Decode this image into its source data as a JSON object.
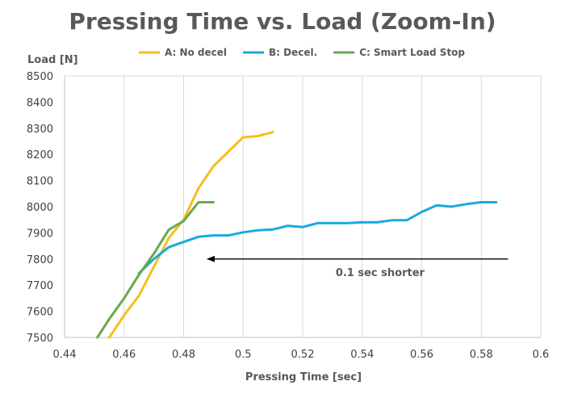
{
  "chart_data": {
    "type": "line",
    "title": "Pressing Time vs. Load (Zoom-In)",
    "xlabel": "Pressing Time [sec]",
    "ylabel": "Load [N]",
    "xlim": [
      0.44,
      0.6
    ],
    "ylim": [
      7500,
      8500
    ],
    "xticks": [
      0.44,
      0.46,
      0.48,
      0.5,
      0.52,
      0.54,
      0.56,
      0.58,
      0.6
    ],
    "xtick_labels": [
      "0.44",
      "0.46",
      "0.48",
      "0.5",
      "0.52",
      "0.54",
      "0.56",
      "0.58",
      "0.6"
    ],
    "yticks": [
      7500,
      7600,
      7700,
      7800,
      7900,
      8000,
      8100,
      8200,
      8300,
      8400,
      8500
    ],
    "ytick_labels": [
      "7500",
      "7600",
      "7700",
      "7800",
      "7900",
      "8000",
      "8100",
      "8200",
      "8300",
      "8400",
      "8500"
    ],
    "grid": "vertical",
    "legend_position": "top",
    "series": [
      {
        "name": "A: No decel",
        "color": "#f5bf1d",
        "x": [
          0.455,
          0.46,
          0.465,
          0.47,
          0.475,
          0.48,
          0.485,
          0.49,
          0.495,
          0.5,
          0.505,
          0.51
        ],
        "y": [
          7500,
          7585,
          7660,
          7770,
          7880,
          7950,
          8070,
          8155,
          8210,
          8265,
          8270,
          8285
        ]
      },
      {
        "name": "B: Decel.",
        "color": "#1aa9df",
        "x": [
          0.465,
          0.47,
          0.475,
          0.48,
          0.485,
          0.49,
          0.495,
          0.5,
          0.505,
          0.51,
          0.515,
          0.52,
          0.525,
          0.53,
          0.535,
          0.54,
          0.545,
          0.55,
          0.555,
          0.56,
          0.565,
          0.57,
          0.575,
          0.58,
          0.585
        ],
        "y": [
          7745,
          7800,
          7845,
          7865,
          7885,
          7890,
          7890,
          7902,
          7910,
          7913,
          7927,
          7922,
          7937,
          7937,
          7937,
          7940,
          7940,
          7948,
          7948,
          7980,
          8005,
          8000,
          8010,
          8017,
          8017
        ]
      },
      {
        "name": "C: Smart Load Stop",
        "color": "#6aa84f",
        "x": [
          0.451,
          0.455,
          0.46,
          0.465,
          0.47,
          0.475,
          0.48,
          0.485,
          0.49
        ],
        "y": [
          7500,
          7570,
          7650,
          7740,
          7820,
          7912,
          7945,
          8017,
          8017
        ]
      }
    ],
    "annotations": [
      {
        "text": "0.1 sec shorter",
        "arrow_from": [
          0.589,
          7800
        ],
        "arrow_to": [
          0.488,
          7800
        ],
        "text_at": [
          0.546,
          7750
        ]
      }
    ]
  }
}
